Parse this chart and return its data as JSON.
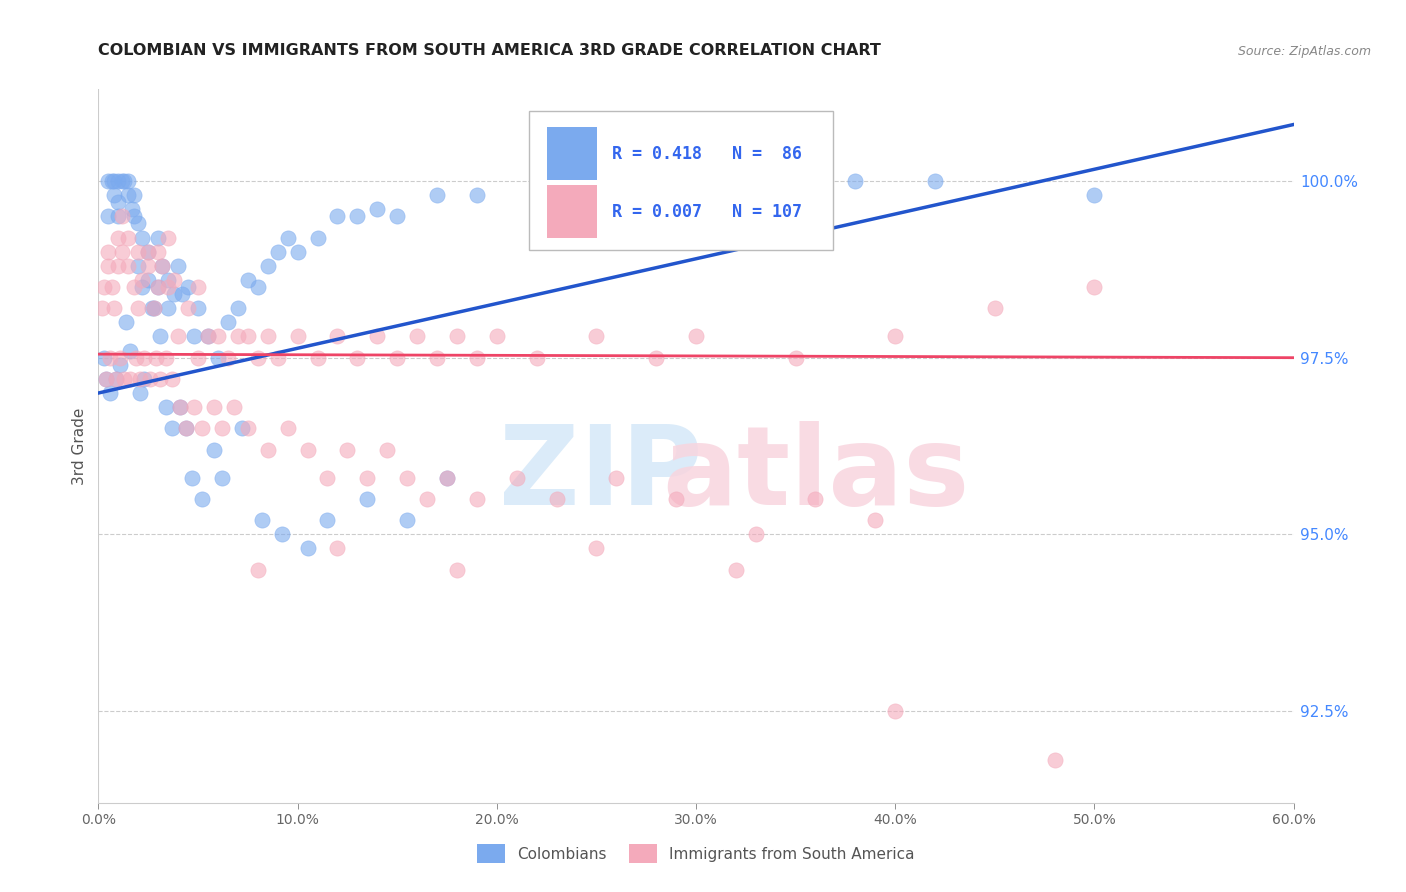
{
  "title": "COLOMBIAN VS IMMIGRANTS FROM SOUTH AMERICA 3RD GRADE CORRELATION CHART",
  "source": "Source: ZipAtlas.com",
  "ylabel": "3rd Grade",
  "right_yticks": [
    100.0,
    97.5,
    95.0,
    92.5
  ],
  "right_yticklabels": [
    "100.0%",
    "97.5%",
    "95.0%",
    "92.5%"
  ],
  "legend_blue_label": "Colombians",
  "legend_pink_label": "Immigrants from South America",
  "R_blue": 0.418,
  "N_blue": 86,
  "R_pink": 0.007,
  "N_pink": 107,
  "blue_color": "#7BAAEE",
  "pink_color": "#F4AABB",
  "trend_blue_color": "#2255CC",
  "trend_pink_color": "#EE4466",
  "xlim": [
    0.0,
    60.0
  ],
  "ylim": [
    91.2,
    101.3
  ],
  "blue_scatter_x": [
    0.3,
    0.5,
    0.5,
    0.7,
    0.8,
    0.8,
    1.0,
    1.0,
    1.0,
    1.2,
    1.3,
    1.5,
    1.5,
    1.7,
    1.8,
    1.8,
    2.0,
    2.0,
    2.2,
    2.2,
    2.5,
    2.5,
    2.8,
    3.0,
    3.0,
    3.2,
    3.5,
    3.5,
    3.8,
    4.0,
    4.2,
    4.5,
    4.8,
    5.0,
    5.5,
    6.0,
    6.5,
    7.0,
    7.5,
    8.0,
    8.5,
    9.0,
    9.5,
    10.0,
    11.0,
    12.0,
    13.0,
    14.0,
    15.0,
    17.0,
    19.0,
    22.0,
    25.0,
    28.0,
    32.0,
    38.0,
    42.0,
    50.0,
    0.4,
    0.6,
    0.9,
    1.1,
    1.4,
    1.6,
    2.1,
    2.3,
    2.7,
    3.1,
    3.4,
    3.7,
    4.1,
    4.4,
    4.7,
    5.2,
    5.8,
    6.2,
    7.2,
    8.2,
    9.2,
    10.5,
    11.5,
    13.5,
    15.5,
    17.5
  ],
  "blue_scatter_y": [
    97.5,
    99.5,
    100.0,
    100.0,
    100.0,
    99.8,
    100.0,
    99.7,
    99.5,
    100.0,
    100.0,
    100.0,
    99.8,
    99.6,
    99.8,
    99.5,
    99.4,
    98.8,
    99.2,
    98.5,
    99.0,
    98.6,
    98.2,
    98.5,
    99.2,
    98.8,
    98.6,
    98.2,
    98.4,
    98.8,
    98.4,
    98.5,
    97.8,
    98.2,
    97.8,
    97.5,
    98.0,
    98.2,
    98.6,
    98.5,
    98.8,
    99.0,
    99.2,
    99.0,
    99.2,
    99.5,
    99.5,
    99.6,
    99.5,
    99.8,
    99.8,
    99.8,
    99.9,
    100.0,
    100.0,
    100.0,
    100.0,
    99.8,
    97.2,
    97.0,
    97.2,
    97.4,
    98.0,
    97.6,
    97.0,
    97.2,
    98.2,
    97.8,
    96.8,
    96.5,
    96.8,
    96.5,
    95.8,
    95.5,
    96.2,
    95.8,
    96.5,
    95.2,
    95.0,
    94.8,
    95.2,
    95.5,
    95.2,
    95.8
  ],
  "pink_scatter_x": [
    0.2,
    0.3,
    0.5,
    0.5,
    0.7,
    0.8,
    1.0,
    1.0,
    1.2,
    1.2,
    1.5,
    1.5,
    1.8,
    2.0,
    2.0,
    2.2,
    2.5,
    2.5,
    2.8,
    3.0,
    3.0,
    3.2,
    3.5,
    3.5,
    3.8,
    4.0,
    4.5,
    5.0,
    5.0,
    5.5,
    6.0,
    6.5,
    7.0,
    7.5,
    8.0,
    8.5,
    9.0,
    10.0,
    11.0,
    12.0,
    13.0,
    14.0,
    15.0,
    16.0,
    17.0,
    18.0,
    19.0,
    20.0,
    22.0,
    25.0,
    28.0,
    30.0,
    35.0,
    40.0,
    45.0,
    50.0,
    0.4,
    0.6,
    0.9,
    1.1,
    1.3,
    1.6,
    1.9,
    2.1,
    2.3,
    2.6,
    2.9,
    3.1,
    3.4,
    3.7,
    4.1,
    4.4,
    4.8,
    5.2,
    5.8,
    6.2,
    6.8,
    7.5,
    8.5,
    9.5,
    10.5,
    11.5,
    12.5,
    13.5,
    14.5,
    15.5,
    16.5,
    17.5,
    19.0,
    21.0,
    23.0,
    26.0,
    29.0,
    33.0,
    36.0,
    39.0,
    8.0,
    12.0,
    18.0,
    25.0,
    32.0,
    40.0,
    48.0
  ],
  "pink_scatter_y": [
    98.2,
    98.5,
    98.8,
    99.0,
    98.5,
    98.2,
    98.8,
    99.2,
    99.0,
    99.5,
    98.8,
    99.2,
    98.5,
    99.0,
    98.2,
    98.6,
    98.8,
    99.0,
    98.2,
    98.5,
    99.0,
    98.8,
    98.5,
    99.2,
    98.6,
    97.8,
    98.2,
    97.5,
    98.5,
    97.8,
    97.8,
    97.5,
    97.8,
    97.8,
    97.5,
    97.8,
    97.5,
    97.8,
    97.5,
    97.8,
    97.5,
    97.8,
    97.5,
    97.8,
    97.5,
    97.8,
    97.5,
    97.8,
    97.5,
    97.8,
    97.5,
    97.8,
    97.5,
    97.8,
    98.2,
    98.5,
    97.2,
    97.5,
    97.2,
    97.5,
    97.2,
    97.2,
    97.5,
    97.2,
    97.5,
    97.2,
    97.5,
    97.2,
    97.5,
    97.2,
    96.8,
    96.5,
    96.8,
    96.5,
    96.8,
    96.5,
    96.8,
    96.5,
    96.2,
    96.5,
    96.2,
    95.8,
    96.2,
    95.8,
    96.2,
    95.8,
    95.5,
    95.8,
    95.5,
    95.8,
    95.5,
    95.8,
    95.5,
    95.0,
    95.5,
    95.2,
    94.5,
    94.8,
    94.5,
    94.8,
    94.5,
    92.5,
    91.8
  ]
}
